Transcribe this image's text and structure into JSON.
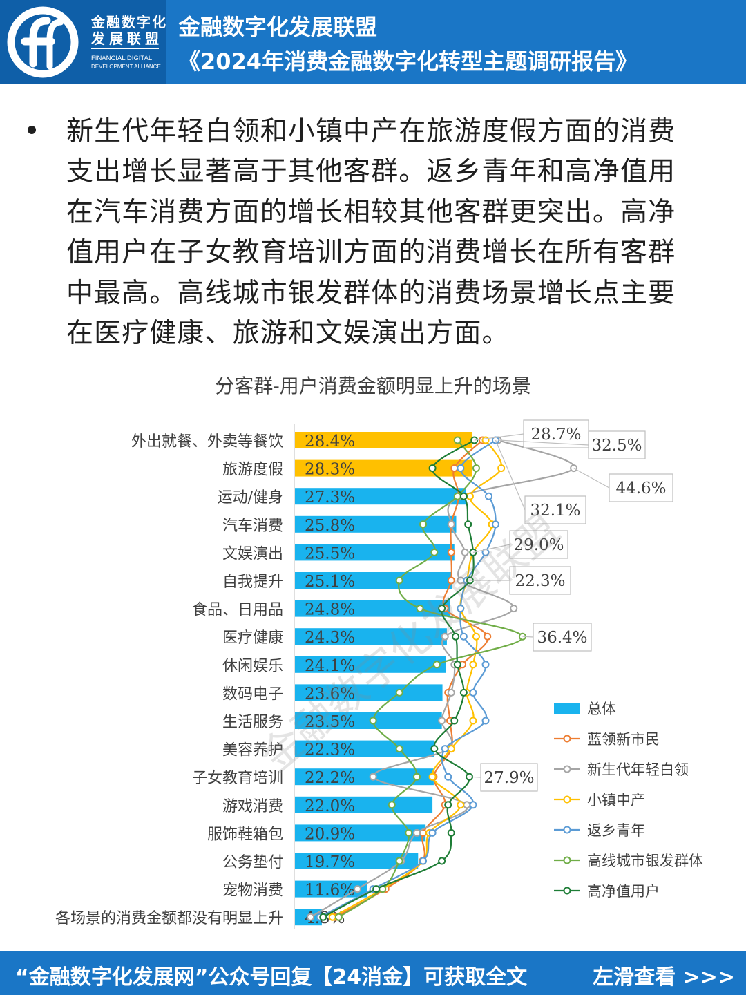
{
  "header": {
    "logo_cn_line1": "金融数字化",
    "logo_cn_line2": "发展联盟",
    "logo_en_line1": "FINANCIAL DIGITAL",
    "logo_en_line2": "DEVELOPMENT ALLIANCE",
    "title_line1": "金融数字化发展联盟",
    "title_line2": "《2024年消费金融数字化转型主题调研报告》"
  },
  "bullet": {
    "lines": [
      "新生代年轻白领和小镇中产在旅游度假方面的消费",
      "支出增长显著高于其他客群。返乡青年和高净值用",
      "在汽车消费方面的增长相较其他客群更突出。高净",
      "值用户在子女教育培训方面的消费增长在所有客群",
      "中最高。高线城市银发群体的消费场景增长点主要",
      "在医疗健康、旅游和文娱演出方面。"
    ]
  },
  "watermark": "金融数字化发展联盟",
  "chart_data": {
    "type": "bar",
    "title": "分客群-用户消费金额明显上升的场景",
    "orientation": "horizontal",
    "categories": [
      "外出就餐、外卖等餐饮",
      "旅游度假",
      "运动/健身",
      "汽车消费",
      "文娱演出",
      "自我提升",
      "食品、日用品",
      "医疗健康",
      "休闲娱乐",
      "数码电子",
      "生活服务",
      "美容养护",
      "子女教育培训",
      "游戏消费",
      "服饰鞋箱包",
      "公务垫付",
      "宠物消费",
      "各场景的消费金额都没有明显上升"
    ],
    "bar_series": {
      "name": "总体",
      "color": "#19b3ee",
      "values": [
        28.4,
        28.3,
        27.3,
        25.8,
        25.5,
        25.1,
        24.8,
        24.3,
        24.1,
        23.6,
        23.5,
        22.3,
        22.2,
        22.0,
        20.9,
        19.7,
        11.6,
        4.3
      ],
      "labels": [
        "28.4%",
        "28.3%",
        "27.3%",
        "25.8%",
        "25.5%",
        "25.1%",
        "24.8%",
        "24.3%",
        "24.1%",
        "23.6%",
        "23.5%",
        "22.3%",
        "22.2%",
        "22.0%",
        "20.9%",
        "19.7%",
        "11.6%",
        "4.3%"
      ],
      "highlight_color": "#ffc000",
      "highlight_count": 2
    },
    "line_series": [
      {
        "name": "蓝领新市民",
        "color": "#ed7d31",
        "values": [
          30.0,
          25.5,
          26.2,
          25.0,
          25.0,
          25.0,
          24.0,
          30.8,
          26.8,
          24.5,
          24.8,
          25.0,
          22.2,
          24.0,
          20.5,
          20.4,
          14.5,
          6.5
        ]
      },
      {
        "name": "新生代年轻白领",
        "color": "#a5a5a5",
        "values": [
          32.5,
          44.6,
          26.5,
          25.0,
          27.2,
          26.5,
          35.0,
          24.0,
          25.5,
          25.0,
          23.5,
          24.5,
          12.5,
          27.5,
          19.5,
          17.0,
          10.0,
          2.5
        ]
      },
      {
        "name": "小镇中产",
        "color": "#ffc000",
        "values": [
          30.5,
          33.0,
          28.0,
          31.5,
          28.5,
          27.5,
          26.5,
          29.0,
          28.5,
          27.5,
          28.5,
          25.0,
          22.0,
          26.5,
          21.5,
          20.5,
          14.0,
          6.0
        ]
      },
      {
        "name": "返乡青年",
        "color": "#5b9bd5",
        "values": [
          32.1,
          26.5,
          31.0,
          32.1,
          30.5,
          27.5,
          26.5,
          27.0,
          30.5,
          28.5,
          30.5,
          24.0,
          24.5,
          28.5,
          22.0,
          20.5,
          12.5,
          4.0
        ]
      },
      {
        "name": "高线城市银发群体",
        "color": "#70ad47",
        "values": [
          26.0,
          29.0,
          26.0,
          20.5,
          22.3,
          16.7,
          20.0,
          36.4,
          22.7,
          16.7,
          12.5,
          16.7,
          19.5,
          15.5,
          18.2,
          16.7,
          14.0,
          7.0
        ]
      },
      {
        "name": "高净值用户",
        "color": "#1e7d36",
        "values": [
          28.7,
          22.0,
          27.0,
          27.7,
          28.5,
          28.0,
          23.5,
          25.7,
          26.0,
          27.0,
          25.5,
          22.3,
          27.9,
          24.5,
          25.0,
          23.5,
          13.0,
          4.5
        ]
      }
    ],
    "callouts": [
      "28.7%",
      "32.5%",
      "44.6%",
      "32.1%",
      "29.0%",
      "22.3%",
      "36.4%",
      "27.9%"
    ],
    "legend_position": "right",
    "grid": false
  },
  "footer": {
    "left": "“金融数字化发展网”公众号回复【24消金】可获取全文",
    "right": "左滑查看 >>>"
  }
}
